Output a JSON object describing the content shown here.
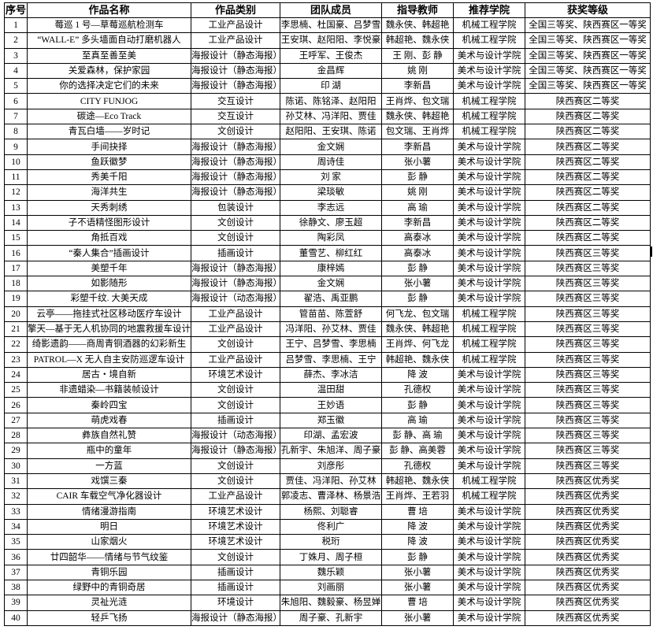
{
  "headers": [
    "序号",
    "作品名称",
    "作品类别",
    "团队成员",
    "指导教师",
    "推荐学院",
    "获奖等级"
  ],
  "rows": [
    [
      "1",
      "莓巡 1 号—草莓巡航检测车",
      "工业产品设计",
      "李思楠、杜国豪、吕梦雪",
      "魏永侠、韩超艳",
      "机械工程学院",
      "全国三等奖、陕西赛区一等奖"
    ],
    [
      "2",
      "“WALL-E” 多头墙面自动打磨机器人",
      "工业产品设计",
      "王安琪、赵阳阳、李悦豪",
      "韩超艳、魏永侠",
      "机械工程学院",
      "全国三等奖、陕西赛区一等奖"
    ],
    [
      "3",
      "至真至善至美",
      "海报设计（静态海报）",
      "王呼军、王俊杰",
      "王 刚、彭 静",
      "美术与设计学院",
      "全国三等奖、陕西赛区一等奖"
    ],
    [
      "4",
      "关爱森林，保护家园",
      "海报设计（静态海报）",
      "金昌辉",
      "姚 刚",
      "美术与设计学院",
      "全国三等奖、陕西赛区一等奖"
    ],
    [
      "5",
      "你的选择决定它们的未来",
      "海报设计（静态海报）",
      "印 湖",
      "李新昌",
      "美术与设计学院",
      "全国三等奖、陕西赛区一等奖"
    ],
    [
      "6",
      "CITY FUNJOG",
      "交互设计",
      "陈诺、陈铭泽、赵阳阳",
      "王肖烨、包文瑞",
      "机械工程学院",
      "陕西赛区二等奖"
    ],
    [
      "7",
      "碳途—Eco Track",
      "交互设计",
      "孙艾林、冯洋阳、贾佳",
      "魏永侠、韩超艳",
      "机械工程学院",
      "陕西赛区二等奖"
    ],
    [
      "8",
      "青瓦白墙——岁时记",
      "文创设计",
      "赵阳阳、王安琪、陈诺",
      "包文瑞、王肖烨",
      "机械工程学院",
      "陕西赛区二等奖"
    ],
    [
      "9",
      "手间抉择",
      "海报设计（静态海报）",
      "金文娴",
      "李新昌",
      "美术与设计学院",
      "陕西赛区二等奖"
    ],
    [
      "10",
      "鱼跃徽梦",
      "海报设计（静态海报）",
      "周诗佳",
      "张小薯",
      "美术与设计学院",
      "陕西赛区二等奖"
    ],
    [
      "11",
      "秀美千阳",
      "海报设计（静态海报）",
      "刘 家",
      "彭 静",
      "美术与设计学院",
      "陕西赛区二等奖"
    ],
    [
      "12",
      "海洋共生",
      "海报设计（静态海报）",
      "梁琰敏",
      "姚 刚",
      "美术与设计学院",
      "陕西赛区二等奖"
    ],
    [
      "13",
      "天秀刺绣",
      "包装设计",
      "李志远",
      "高 瑜",
      "美术与设计学院",
      "陕西赛区二等奖"
    ],
    [
      "14",
      "子不语精怪图形设计",
      "文创设计",
      "徐静文、廖玉超",
      "李新昌",
      "美术与设计学院",
      "陕西赛区二等奖"
    ],
    [
      "15",
      "角抵百戏",
      "文创设计",
      "陶彩凤",
      "高泰冰",
      "美术与设计学院",
      "陕西赛区二等奖"
    ],
    [
      "16",
      "“秦人集合”插画设计",
      "插画设计",
      "董雪艺、柳红红",
      "高泰冰",
      "美术与设计学院",
      "陕西赛区三等奖"
    ],
    [
      "17",
      "美塑千年",
      "海报设计（静态海报）",
      "康梓嫣",
      "彭 静",
      "美术与设计学院",
      "陕西赛区三等奖"
    ],
    [
      "18",
      "如影随形",
      "海报设计（静态海报）",
      "金文娴",
      "张小薯",
      "美术与设计学院",
      "陕西赛区三等奖"
    ],
    [
      "19",
      "彩塑千纹. 大美天成",
      "海报设计（动态海报）",
      "翟浩、禹亚鹏",
      "彭 静",
      "美术与设计学院",
      "陕西赛区三等奖"
    ],
    [
      "20",
      "云亭——拖挂式社区移动医疗车设计",
      "工业产品设计",
      "管苗苗、陈萱舒",
      "何飞龙、包文瑞",
      "机械工程学院",
      "陕西赛区三等奖"
    ],
    [
      "21",
      "擎天—基于无人机协同的地震救援车设计",
      "工业产品设计",
      "冯洋阳、孙艾林、贾佳",
      "魏永侠、韩超艳",
      "机械工程学院",
      "陕西赛区三等奖"
    ],
    [
      "22",
      "绮影遗韵——商周青铜酒器的幻彩新生",
      "文创设计",
      "王宁、吕梦雪、李思楠",
      "王肖烨、何飞龙",
      "机械工程学院",
      "陕西赛区三等奖"
    ],
    [
      "23",
      "PATROL—X 无人自主安防巡逻车设计",
      "工业产品设计",
      "吕梦雪、李思楠、王宁",
      "韩超艳、魏永侠",
      "机械工程学院",
      "陕西赛区三等奖"
    ],
    [
      "24",
      "居古・境自新",
      "环境艺术设计",
      "薛杰、李冰洁",
      "降 波",
      "美术与设计学院",
      "陕西赛区三等奖"
    ],
    [
      "25",
      "非遗蜡染—书籍装帧设计",
      "文创设计",
      "温田甜",
      "孔德权",
      "美术与设计学院",
      "陕西赛区三等奖"
    ],
    [
      "26",
      "秦岭四宝",
      "文创设计",
      "王妙语",
      "彭 静",
      "美术与设计学院",
      "陕西赛区三等奖"
    ],
    [
      "27",
      "萌虎戏春",
      "插画设计",
      "郑玉徽",
      "高 瑜",
      "美术与设计学院",
      "陕西赛区三等奖"
    ],
    [
      "28",
      "彝族自然礼赞",
      "海报设计（动态海报）",
      "印湖、孟宏波",
      "彭 静、高 瑜",
      "美术与设计学院",
      "陕西赛区三等奖"
    ],
    [
      "29",
      "瓶中的童年",
      "海报设计（静态海报）",
      "孔新宇、朱旭洋、周子豪",
      "彭 静、高美蓉",
      "美术与设计学院",
      "陕西赛区三等奖"
    ],
    [
      "30",
      "一方蓝",
      "文创设计",
      "刘彦彤",
      "孔德权",
      "美术与设计学院",
      "陕西赛区三等奖"
    ],
    [
      "31",
      "戏馔三秦",
      "文创设计",
      "贾佳、冯洋阳、孙艾林",
      "韩超艳、魏永侠",
      "机械工程学院",
      "陕西赛区优秀奖"
    ],
    [
      "32",
      "CAIR 车载空气净化器设计",
      "工业产品设计",
      "郭凌志、曹泽林、杨景浩",
      "王肖烨、王若羽",
      "机械工程学院",
      "陕西赛区优秀奖"
    ],
    [
      "33",
      "情绪漫游指南",
      "环境艺术设计",
      "杨熙、刘聪睿",
      "曹 培",
      "美术与设计学院",
      "陕西赛区优秀奖"
    ],
    [
      "34",
      "明日",
      "环境艺术设计",
      "佟利广",
      "降 波",
      "美术与设计学院",
      "陕西赛区优秀奖"
    ],
    [
      "35",
      "山家烟火",
      "环境艺术设计",
      "税珩",
      "降 波",
      "美术与设计学院",
      "陕西赛区优秀奖"
    ],
    [
      "36",
      "廿四韶华——情绪与节气纹鉴",
      "文创设计",
      "丁姝月、周子桓",
      "彭 静",
      "美术与设计学院",
      "陕西赛区优秀奖"
    ],
    [
      "37",
      "青铜乐园",
      "插画设计",
      "魏乐颖",
      "张小薯",
      "美术与设计学院",
      "陕西赛区优秀奖"
    ],
    [
      "38",
      "绿野中的青铜奇居",
      "插画设计",
      "刘画丽",
      "张小薯",
      "美术与设计学院",
      "陕西赛区优秀奖"
    ],
    [
      "39",
      "灵祉光涟",
      "环境设计",
      "朱旭阳、魏毅豪、杨昱婵",
      "曹 培",
      "美术与设计学院",
      "陕西赛区优秀奖"
    ],
    [
      "40",
      "轻乒飞扬",
      "海报设计（静态海报）",
      "周子豪、孔新宇",
      "张小薯",
      "美术与设计学院",
      "陕西赛区优秀奖"
    ]
  ]
}
